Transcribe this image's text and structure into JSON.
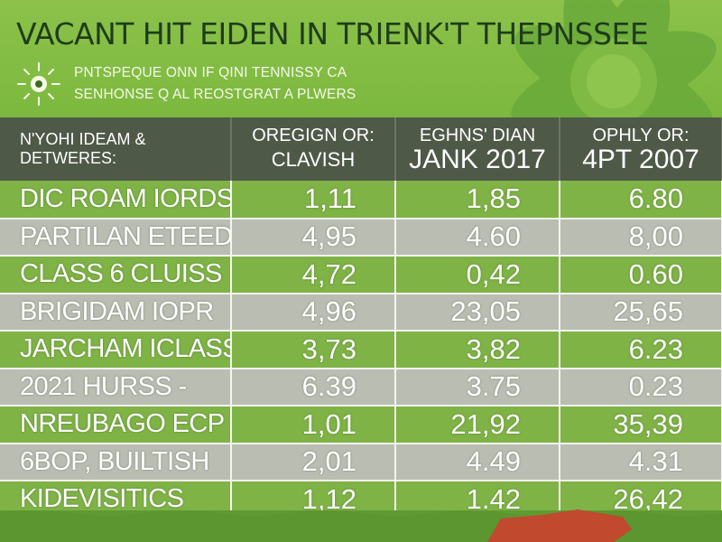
{
  "header": {
    "title": "VACANT HIT EIDEN IN TRIENK'T THEPNSSEE",
    "subtitle_1": "PNTSPEQUE ONN IF QINI TENNISSY CA",
    "subtitle_2": "SENHONSE Q AL REOSTGRAT A PLWERS"
  },
  "colors": {
    "header_bg": "#4f5948",
    "row_green": "#7fb346",
    "row_gray": "#b9bdb2",
    "title_text": "#1f3d1b",
    "background_green": "#7cb83e"
  },
  "icons": [
    "sun-icon",
    "leaf-icon",
    "red-shape-icon"
  ],
  "chart_data": {
    "type": "table",
    "columns": [
      {
        "line1": "N'YOHI IDEAM & DETWERES:",
        "line2": ""
      },
      {
        "line1": "OREGIGN OR:",
        "line2": "CLAVISH"
      },
      {
        "line1": "EGHNS' DIAN",
        "line2": "JANK 2017"
      },
      {
        "line1": "OPHLY OR:",
        "line2": "4PT 2007"
      }
    ],
    "rows": [
      [
        "DIC ROAM IORDS",
        "1,11",
        "1,85",
        "6.80"
      ],
      [
        "PARTILAN ETEEDIC",
        "4,95",
        "4.60",
        "8,00"
      ],
      [
        "CLASS 6 CLUISS",
        "4,72",
        "0,42",
        "0.60"
      ],
      [
        "BRIGIDAM IOPR",
        "4,96",
        "23,05",
        "25,65"
      ],
      [
        "JARCHAM ICLASS",
        "3,73",
        "3,82",
        "6.23"
      ],
      [
        "2021 HURSS -",
        "6.39",
        "3.75",
        "0.23"
      ],
      [
        "NREUBAGO ECP",
        "1,01",
        "21,92",
        "35,39"
      ],
      [
        "6BOP, BUILTISH",
        "2,01",
        "4.49",
        "4.31"
      ],
      [
        "KIDEVISITICS",
        "1,12",
        "1.42",
        "26,42"
      ]
    ]
  }
}
